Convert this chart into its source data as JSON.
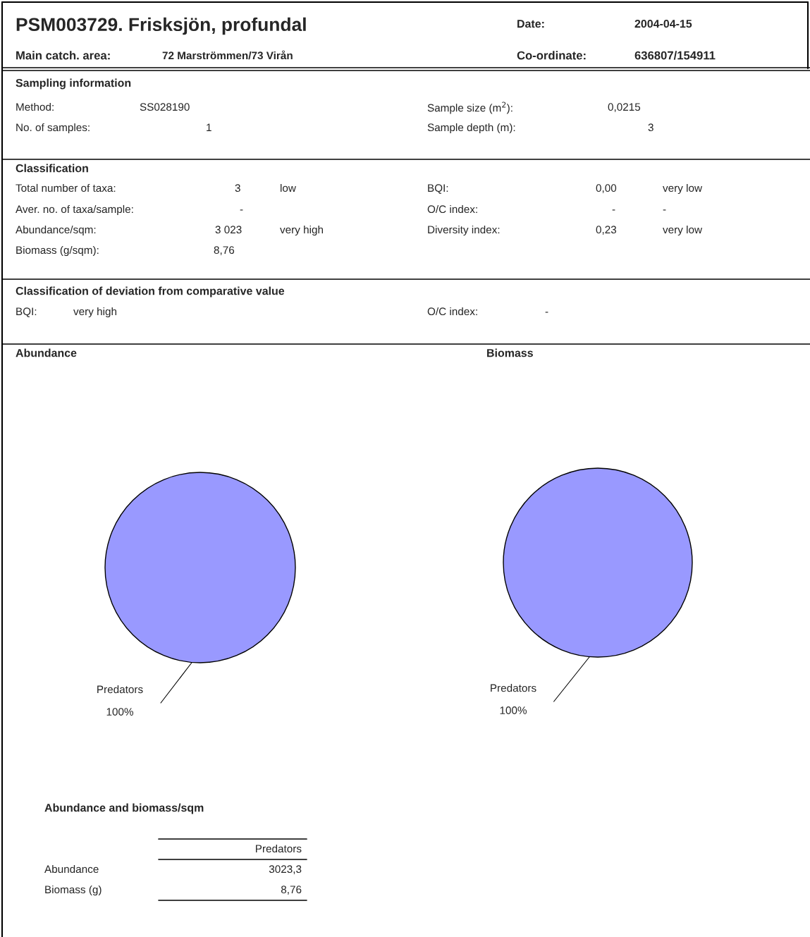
{
  "chart_data": [
    {
      "type": "other",
      "title": "PSM003729. Frisksjön, profundal",
      "annotations": [
        "Date:",
        "2004-04-15",
        "Main catch. area:",
        "72 Marströmmen/73 Virån",
        "Co-ordinate:",
        "636807/154911"
      ]
    },
    {
      "type": "other",
      "title": "Sampling information",
      "annotations": [
        "Method:",
        "SS028190",
        "Sample size (m$^{2}$):",
        "0,0215",
        "No. of samples:",
        "1",
        "Sample depth (m):",
        "3"
      ]
    },
    {
      "type": "other",
      "title": "Classification",
      "annotations": [
        "Total number of taxa:",
        "3",
        "low",
        "BQI:",
        "0,00",
        "very low",
        "Aver. no. of taxa/sample:",
        "-",
        "O/C index:",
        "-",
        "-",
        "Abundance/sqm:",
        "3 023",
        "very high",
        "Diversity index:",
        "0,23",
        "very low",
        "Biomass (g/sqm):",
        "8,76"
      ]
    },
    {
      "type": "other",
      "title": "Classification of deviation from comparative value",
      "annotations": [
        "BQI:",
        "very high",
        "O/C index:",
        "-"
      ]
    },
    {
      "type": "pie",
      "title": "Abundance",
      "categories": [
        "Predators"
      ],
      "values": [
        100
      ],
      "colors": [
        "#9999ff"
      ],
      "value_labels": [
        "100%"
      ]
    },
    {
      "type": "pie",
      "title": "Biomass",
      "categories": [
        "Predators"
      ],
      "values": [
        100
      ],
      "colors": [
        "#9999ff"
      ],
      "value_labels": [
        "100%"
      ]
    },
    {
      "type": "other",
      "title": "Abundance and biomass/sqm",
      "annotations": [
        "Predators",
        "Abundance",
        "3023,3",
        "Biomass (g)",
        "8,76"
      ]
    }
  ]
}
